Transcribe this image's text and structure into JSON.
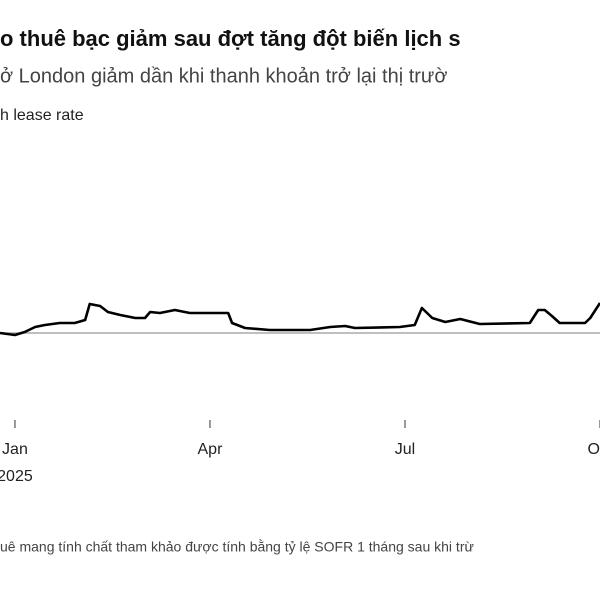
{
  "chart_data": {
    "type": "line",
    "title": "o thuê bạc giảm sau đợt tăng đột biến lịch s",
    "subtitle": "ở London giảm dần khi thanh khoản trở lại thị trườ",
    "y_label": "h lease rate",
    "footnote": "uê mang tính chất tham khảo được tính bằng tỷ lệ SOFR 1 tháng sau khi trừ",
    "x_year_label": "2025",
    "x": [
      -0.23,
      0,
      0.15,
      0.31,
      0.46,
      0.69,
      0.92,
      1.08,
      1.15,
      1.31,
      1.43,
      1.62,
      1.85,
      2.0,
      2.08,
      2.23,
      2.46,
      2.69,
      3.28,
      3.34,
      3.54,
      3.92,
      4.54,
      4.85,
      5.08,
      5.23,
      5.92,
      6.15,
      6.26,
      6.42,
      6.62,
      6.85,
      7.15,
      7.92,
      8.05,
      8.15,
      8.26,
      8.38,
      8.77,
      8.85,
      9.0
    ],
    "series": [
      {
        "color": "#000000",
        "values": [
          0,
          -0.2,
          0.1,
          0.6,
          0.8,
          1.0,
          1.0,
          1.3,
          2.9,
          2.7,
          2.1,
          1.8,
          1.5,
          1.5,
          2.1,
          2.0,
          2.3,
          2.0,
          2.0,
          1.0,
          0.5,
          0.3,
          0.3,
          0.6,
          0.7,
          0.5,
          0.6,
          0.8,
          2.5,
          1.5,
          1.1,
          1.4,
          0.9,
          1.0,
          2.3,
          2.3,
          1.7,
          1.0,
          1.0,
          1.5,
          3.0
        ]
      }
    ],
    "baseline": 0,
    "xlim": [
      -0.23,
      9.0
    ],
    "ylim": [
      -7,
      19
    ],
    "xticks": [
      {
        "value": 0,
        "label": "Jan"
      },
      {
        "value": 3,
        "label": "Apr"
      },
      {
        "value": 6,
        "label": "Jul"
      },
      {
        "value": 9,
        "label": "Oct"
      }
    ]
  }
}
